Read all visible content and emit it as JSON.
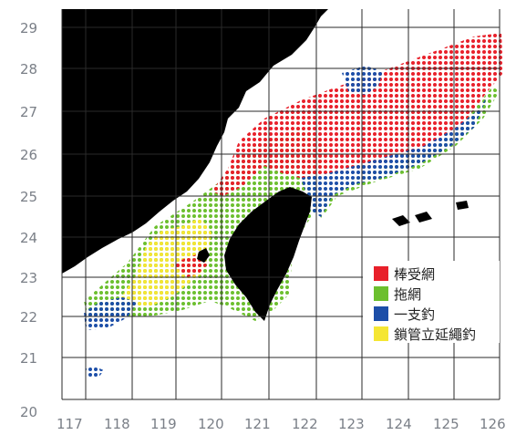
{
  "axes": {
    "x_ticks": [
      "117",
      "118",
      "119",
      "120",
      "121",
      "122",
      "123",
      "124",
      "125",
      "126"
    ],
    "y_ticks": [
      "29",
      "28",
      "27",
      "26",
      "25",
      "24",
      "23",
      "22",
      "21",
      "20"
    ]
  },
  "legend": {
    "items": [
      {
        "label": "棒受網",
        "color": "#e8202a"
      },
      {
        "label": "拖網",
        "color": "#6cbf2e"
      },
      {
        "label": "一支釣",
        "color": "#1c4ea8"
      },
      {
        "label": "鎖管立延繩釣",
        "color": "#f5e633"
      }
    ]
  },
  "map_data": {
    "lon_range": [
      117,
      126
    ],
    "lat_range": [
      20,
      29
    ],
    "landmasses": [
      "mainland-coast",
      "taiwan-island",
      "penghu-islets",
      "yaeyama-islands"
    ],
    "gear_zones": [
      {
        "gear": "棒受網",
        "area": "north-east, 26–29N 122–126E, plus north of Taiwan strait"
      },
      {
        "gear": "拖網",
        "area": "Taiwan Strait and east of Taiwan"
      },
      {
        "gear": "一支釣",
        "area": "east of 122E band and south-west strait edge"
      },
      {
        "gear": "鎖管立延繩釣",
        "area": "south-west strait, 22.5–24.5N 118–120E"
      }
    ]
  }
}
